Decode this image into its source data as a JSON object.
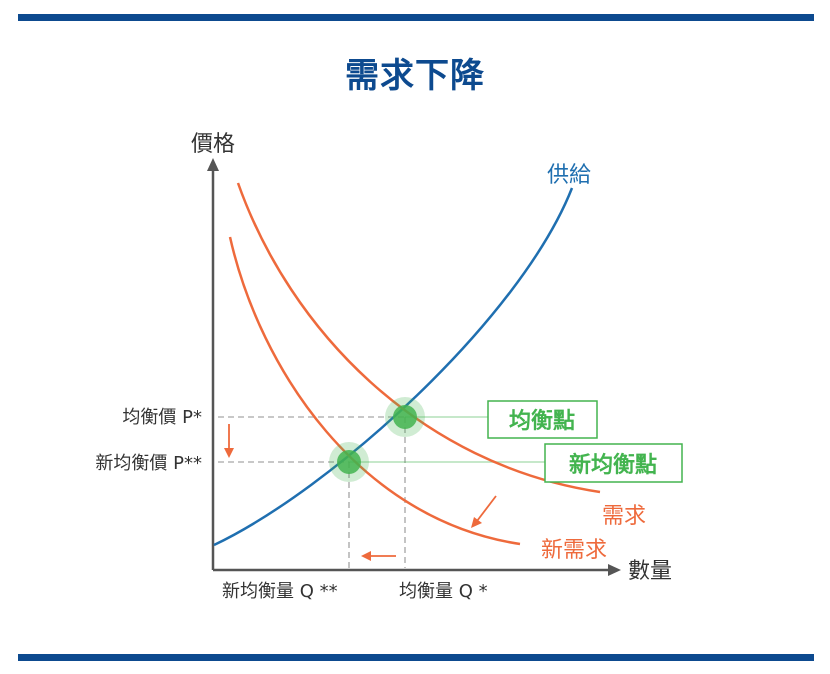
{
  "title": "需求下降",
  "colors": {
    "navy": "#0d4a8f",
    "supply": "#1f6fb0",
    "demand": "#ee6a3c",
    "equilibrium": "#43b44f",
    "guide": "#b5b5b5",
    "axis": "#555555",
    "text": "#333333"
  },
  "axes": {
    "y_label": "價格",
    "x_label": "數量"
  },
  "curves": {
    "supply": "供給",
    "demand": "需求",
    "new_demand": "新需求"
  },
  "points": {
    "equilibrium": "均衡點",
    "new_equilibrium": "新均衡點"
  },
  "prices": {
    "p_star": "均衡價 P*",
    "p_star_star": "新均衡價 P**"
  },
  "quantities": {
    "q_star": "均衡量 Q *",
    "q_star_star": "新均衡量 Q **"
  }
}
